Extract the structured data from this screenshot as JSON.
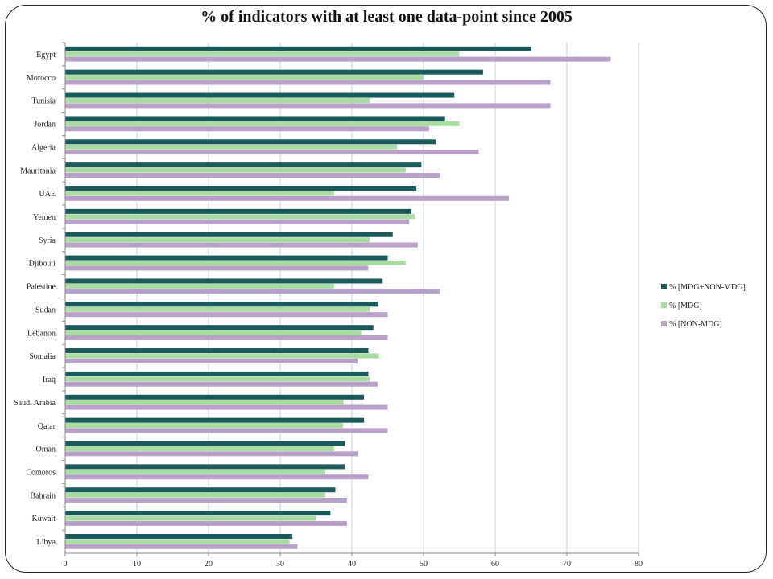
{
  "chart_data": {
    "type": "bar",
    "orientation": "horizontal",
    "title": "% of indicators with at least one data-point since 2005",
    "xlabel": "",
    "ylabel": "",
    "xlim": [
      0,
      80
    ],
    "xticks": [
      0,
      10,
      20,
      30,
      40,
      50,
      60,
      70,
      80
    ],
    "grid": "vertical",
    "legend_position": "right",
    "categories": [
      "Egypt",
      "Morocco",
      "Tunisia",
      "Jordan",
      "Algeria",
      "Mauritania",
      "UAE",
      "Yemen",
      "Syria",
      "Djibouti",
      "Palestine",
      "Sudan",
      "Lebanon",
      "Somalia",
      "Iraq",
      "Saudi Arabia",
      "Qatar",
      "Oman",
      "Comoros",
      "Bahrain",
      "Kuwait",
      "Libya"
    ],
    "series": [
      {
        "name": "% [MDG+NON-MDG]",
        "color": "#1a5a5a",
        "values": [
          65.0,
          58.3,
          54.3,
          53.0,
          51.7,
          49.7,
          49.0,
          48.3,
          45.7,
          45.0,
          44.3,
          43.7,
          43.0,
          42.3,
          42.3,
          41.7,
          41.7,
          39.0,
          39.0,
          37.7,
          37.0,
          31.7
        ]
      },
      {
        "name": "% [MDG]",
        "color": "#a8dca0",
        "values": [
          55.0,
          50.0,
          42.5,
          55.0,
          46.3,
          47.5,
          37.5,
          48.8,
          42.5,
          47.5,
          37.5,
          42.5,
          41.3,
          43.8,
          42.5,
          38.8,
          38.8,
          37.5,
          36.3,
          36.3,
          35.0,
          31.3
        ]
      },
      {
        "name": "% [NON-MDG]",
        "color": "#b9a0c9",
        "values": [
          76.1,
          67.7,
          67.7,
          50.8,
          57.7,
          52.3,
          61.9,
          48.0,
          49.2,
          42.3,
          52.3,
          45.0,
          45.0,
          40.8,
          43.6,
          45.0,
          45.0,
          40.8,
          42.3,
          39.3,
          39.3,
          32.4
        ]
      }
    ]
  }
}
